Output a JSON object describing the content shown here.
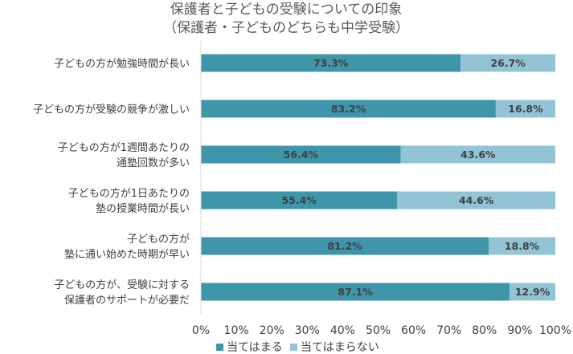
{
  "chart_data": {
    "type": "bar",
    "orientation": "horizontal",
    "stacked": true,
    "title_lines": [
      "保護者と子どもの受験についての印象",
      "（保護者・子どものどちらも中学受験）"
    ],
    "categories": [
      [
        "子どもの方が勉強時間が長い"
      ],
      [
        "子どもの方が受験の競争が激しい"
      ],
      [
        "子どもの方が1週間あたりの",
        "通塾回数が多い"
      ],
      [
        "子どもの方が1日あたりの",
        "塾の授業時間が長い"
      ],
      [
        "子どもの方が",
        "塾に通い始めた時期が早い"
      ],
      [
        "子どもの方が、受験に対する",
        "保護者のサポートが必要だ"
      ]
    ],
    "series": [
      {
        "name": "当てはまる",
        "color": "#3F96AA",
        "values": [
          73.3,
          83.2,
          56.4,
          55.4,
          81.2,
          87.1
        ],
        "labels": [
          "73.3%",
          "83.2%",
          "56.4%",
          "55.4%",
          "81.2%",
          "87.1%"
        ]
      },
      {
        "name": "当てはまらない",
        "color": "#93C4D5",
        "values": [
          26.7,
          16.8,
          43.6,
          44.6,
          18.8,
          12.9
        ],
        "labels": [
          "26.7%",
          "16.8%",
          "43.6%",
          "44.6%",
          "18.8%",
          "12.9%"
        ]
      }
    ],
    "x_ticks": [
      "0%",
      "10%",
      "20%",
      "30%",
      "40%",
      "50%",
      "60%",
      "70%",
      "80%",
      "90%",
      "100%"
    ],
    "xlim": [
      0,
      100
    ],
    "grid": false,
    "legend_position": "bottom"
  }
}
